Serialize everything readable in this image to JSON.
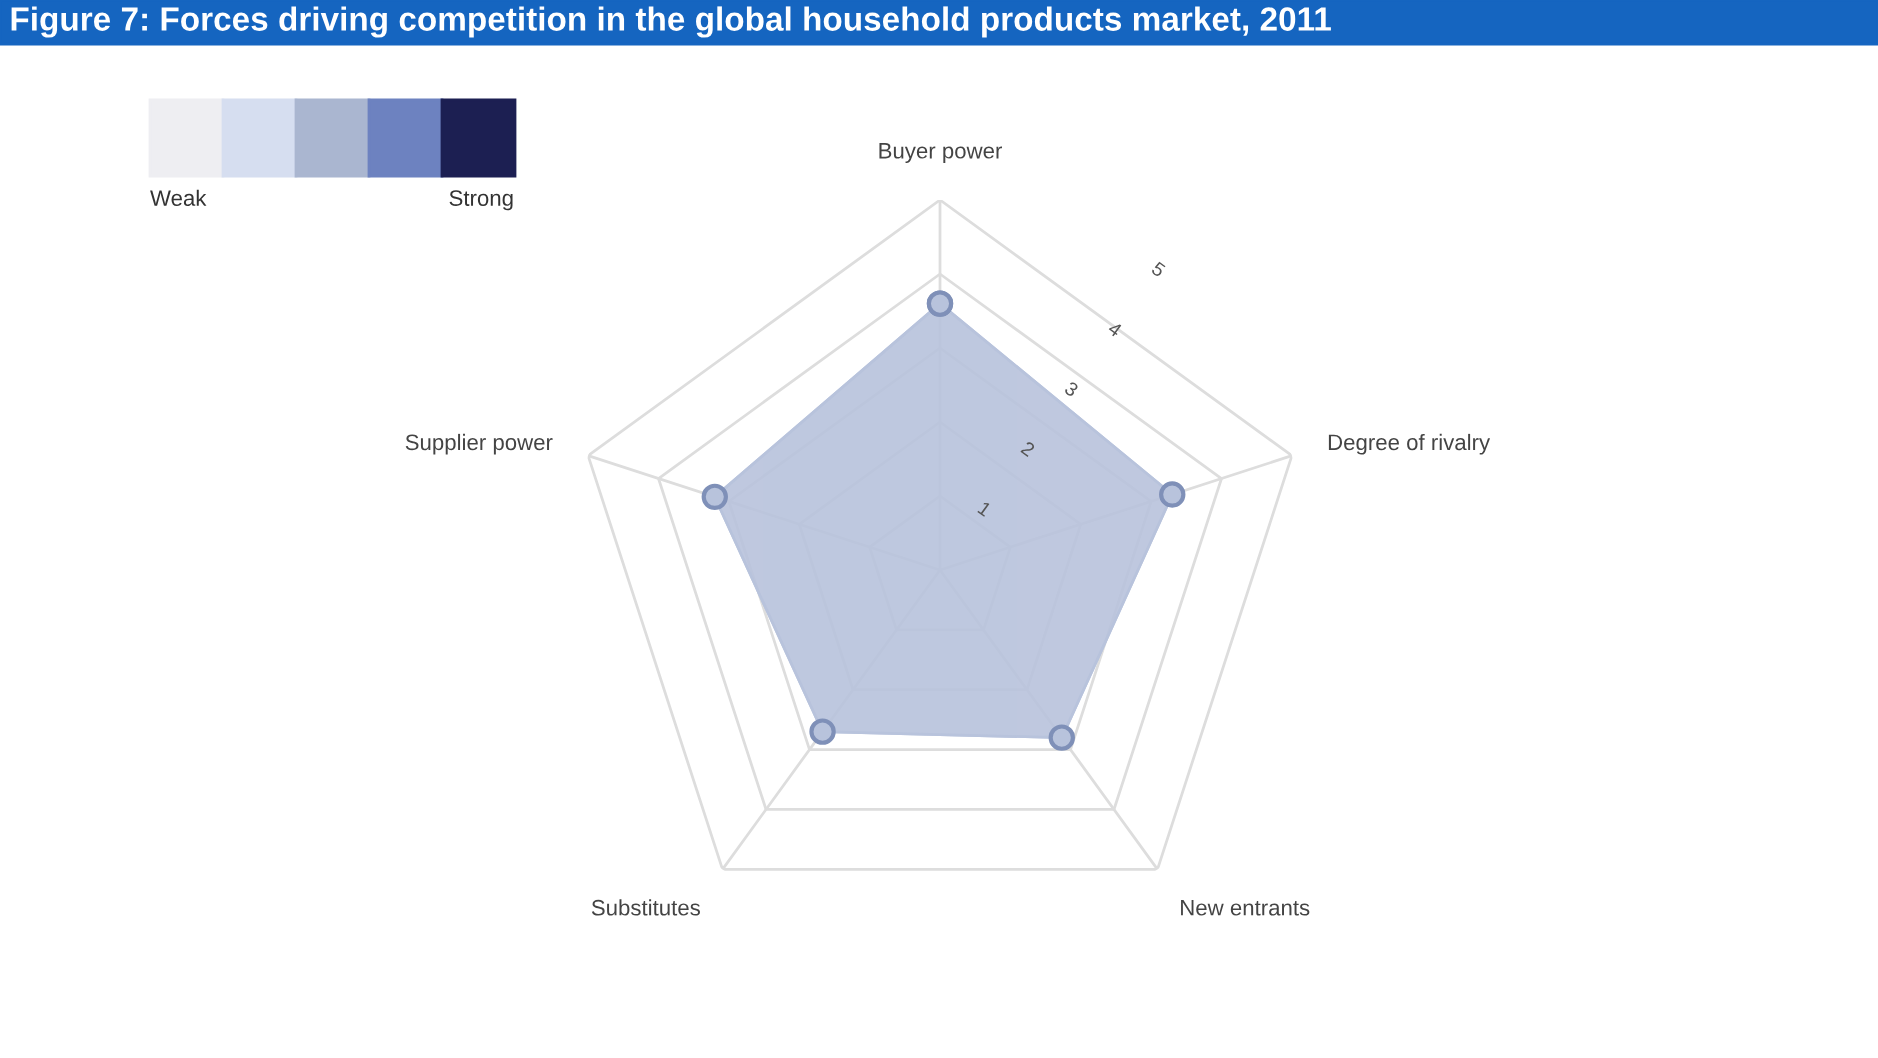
{
  "chart_data": {
    "type": "radar",
    "title": "Figure 7: Forces driving competition in the global household products market, 2011",
    "categories": [
      "Buyer power",
      "Degree of rivalry",
      "New entrants",
      "Substitutes",
      "Supplier power"
    ],
    "series": [
      {
        "color": "#b8c3dc",
        "values": [
          3.6,
          3.3,
          2.8,
          2.7,
          3.2
        ]
      }
    ],
    "ylim": [
      0,
      5
    ],
    "yticks": [
      1,
      2,
      3,
      4,
      5
    ],
    "grid": true,
    "marker": "circle",
    "annotations": [
      "Weak",
      "Strong"
    ]
  }
}
